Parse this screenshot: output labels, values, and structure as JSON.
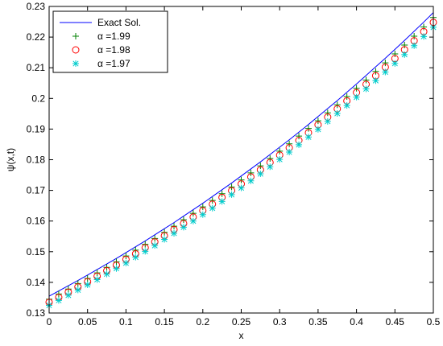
{
  "chart_data": {
    "type": "line",
    "xlabel": "x",
    "ylabel": "ψ(x,t)",
    "xlim": [
      0,
      0.5
    ],
    "ylim": [
      0.13,
      0.23
    ],
    "xticks": [
      "0",
      "0.05",
      "0.1",
      "0.15",
      "0.2",
      "0.25",
      "0.3",
      "0.35",
      "0.4",
      "0.45",
      "0.5"
    ],
    "yticks": [
      "0.13",
      "0.14",
      "0.15",
      "0.16",
      "0.17",
      "0.18",
      "0.19",
      "0.2",
      "0.21",
      "0.22",
      "0.23"
    ],
    "grid": false,
    "legend_position": "top-left",
    "x": [
      0,
      0.0125,
      0.025,
      0.0375,
      0.05,
      0.0625,
      0.075,
      0.0875,
      0.1,
      0.1125,
      0.125,
      0.1375,
      0.15,
      0.1625,
      0.175,
      0.1875,
      0.2,
      0.2125,
      0.225,
      0.2375,
      0.25,
      0.2625,
      0.275,
      0.2875,
      0.3,
      0.3125,
      0.325,
      0.3375,
      0.35,
      0.3625,
      0.375,
      0.3875,
      0.4,
      0.4125,
      0.425,
      0.4375,
      0.45,
      0.4625,
      0.475,
      0.4875,
      0.5
    ],
    "series": [
      {
        "name": "Exact Sol.",
        "marker": "line",
        "color": "#0000ff",
        "values": [
          0.1355,
          0.1372,
          0.1389,
          0.1406,
          0.1424,
          0.1442,
          0.146,
          0.1478,
          0.1497,
          0.1516,
          0.1535,
          0.1555,
          0.1575,
          0.1595,
          0.1616,
          0.1637,
          0.1658,
          0.168,
          0.1702,
          0.1724,
          0.1747,
          0.177,
          0.1793,
          0.1817,
          0.1841,
          0.1865,
          0.189,
          0.1915,
          0.1941,
          0.1967,
          0.1993,
          0.202,
          0.2047,
          0.2075,
          0.2103,
          0.2131,
          0.216,
          0.2189,
          0.2219,
          0.2249,
          0.228
        ]
      },
      {
        "name": "α =1.99",
        "marker": "plus",
        "color": "#008000",
        "values": [
          0.1345,
          0.1362,
          0.1378,
          0.1396,
          0.1413,
          0.1431,
          0.1449,
          0.1467,
          0.1486,
          0.1505,
          0.1524,
          0.1543,
          0.1563,
          0.1583,
          0.1604,
          0.1625,
          0.1646,
          0.1667,
          0.1689,
          0.1711,
          0.1734,
          0.1757,
          0.178,
          0.1804,
          0.1828,
          0.1852,
          0.1877,
          0.1902,
          0.1927,
          0.1953,
          0.1979,
          0.2006,
          0.2033,
          0.206,
          0.2088,
          0.2116,
          0.2145,
          0.2174,
          0.2203,
          0.2233,
          0.2264
        ]
      },
      {
        "name": "α =1.98",
        "marker": "circle",
        "color": "#ff0000",
        "values": [
          0.1335,
          0.1351,
          0.1368,
          0.1385,
          0.1402,
          0.142,
          0.1438,
          0.1456,
          0.1475,
          0.1493,
          0.1513,
          0.1532,
          0.1552,
          0.1572,
          0.1592,
          0.1613,
          0.1634,
          0.1655,
          0.1677,
          0.1699,
          0.1721,
          0.1744,
          0.1767,
          0.1791,
          0.1815,
          0.1839,
          0.1863,
          0.1888,
          0.1914,
          0.1939,
          0.1966,
          0.1992,
          0.2019,
          0.2046,
          0.2074,
          0.2102,
          0.213,
          0.2159,
          0.2188,
          0.2218,
          0.2248
        ]
      },
      {
        "name": "α =1.97",
        "marker": "asterisk",
        "color": "#00cccc",
        "values": [
          0.1325,
          0.1341,
          0.1358,
          0.1375,
          0.1392,
          0.1409,
          0.1427,
          0.1445,
          0.1463,
          0.1482,
          0.1501,
          0.152,
          0.154,
          0.156,
          0.158,
          0.16,
          0.1621,
          0.1642,
          0.1664,
          0.1686,
          0.1708,
          0.1731,
          0.1754,
          0.1777,
          0.1801,
          0.1825,
          0.1849,
          0.1874,
          0.1899,
          0.1925,
          0.1951,
          0.1977,
          0.2004,
          0.2031,
          0.2058,
          0.2086,
          0.2114,
          0.2143,
          0.2172,
          0.2202,
          0.2232
        ]
      }
    ]
  }
}
